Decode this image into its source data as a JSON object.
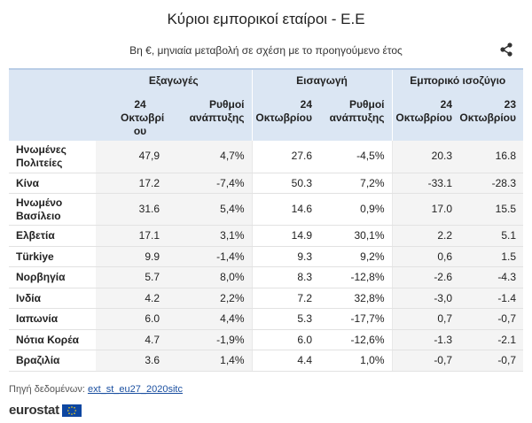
{
  "title": "Κύριοι εμπορικοί εταίροι - Ε.Ε",
  "subtitle": "Βη €, μηνιαία μεταβολή σε σχέση με το προηγούμενο έτος",
  "share_icon": "share-icon",
  "groups": {
    "exports": "Εξαγωγές",
    "imports": "Εισαγωγή",
    "balance": "Εμπορικό ισοζύγιο"
  },
  "columns": {
    "c1": "24 Οκτωβρί ου",
    "c2": "Ρυθμοί ανάπτυξης",
    "c3": "24 Οκτωβρίου",
    "c4": "Ρυθμοί ανάπτυξης",
    "c5": "24 Οκτωβρίου",
    "c6": "23 Οκτωβρίου"
  },
  "rows": [
    {
      "name": "Ηνωμένες Πολιτείες",
      "v": [
        "47,9",
        "4,7%",
        "27.6",
        "-4,5%",
        "20.3",
        "16.8"
      ]
    },
    {
      "name": "Κίνα",
      "v": [
        "17.2",
        "-7,4%",
        "50.3",
        "7,2%",
        "-33.1",
        "-28.3"
      ]
    },
    {
      "name": "Ηνωμένο Βασίλειο",
      "v": [
        "31.6",
        "5,4%",
        "14.6",
        "0,9%",
        "17.0",
        "15.5"
      ]
    },
    {
      "name": "Ελβετία",
      "v": [
        "17.1",
        "3,1%",
        "14.9",
        "30,1%",
        "2.2",
        "5.1"
      ]
    },
    {
      "name": "Türkiye",
      "v": [
        "9.9",
        "-1,4%",
        "9.3",
        "9,2%",
        "0,6",
        "1.5"
      ]
    },
    {
      "name": "Νορβηγία",
      "v": [
        "5.7",
        "8,0%",
        "8.3",
        "-12,8%",
        "-2.6",
        "-4.3"
      ]
    },
    {
      "name": "Ινδία",
      "v": [
        "4.2",
        "2,2%",
        "7.2",
        "32,8%",
        "-3,0",
        "-1.4"
      ]
    },
    {
      "name": "Ιαπωνία",
      "v": [
        "6.0",
        "4,4%",
        "5.3",
        "-17,7%",
        "0,7",
        "-0,7"
      ]
    },
    {
      "name": "Νότια Κορέα",
      "v": [
        "4.7",
        "-1,9%",
        "6.0",
        "-12,6%",
        "-1.3",
        "-2.1"
      ]
    },
    {
      "name": "Βραζιλία",
      "v": [
        "3.6",
        "1,4%",
        "4.4",
        "1,0%",
        "-0,7",
        "-0,7"
      ]
    }
  ],
  "source": {
    "label": "Πηγή δεδομένων:",
    "link": "ext_st_eu27_2020sitc"
  },
  "logo": {
    "text": "eurostat",
    "flag_icon": "eu-flag-icon"
  }
}
